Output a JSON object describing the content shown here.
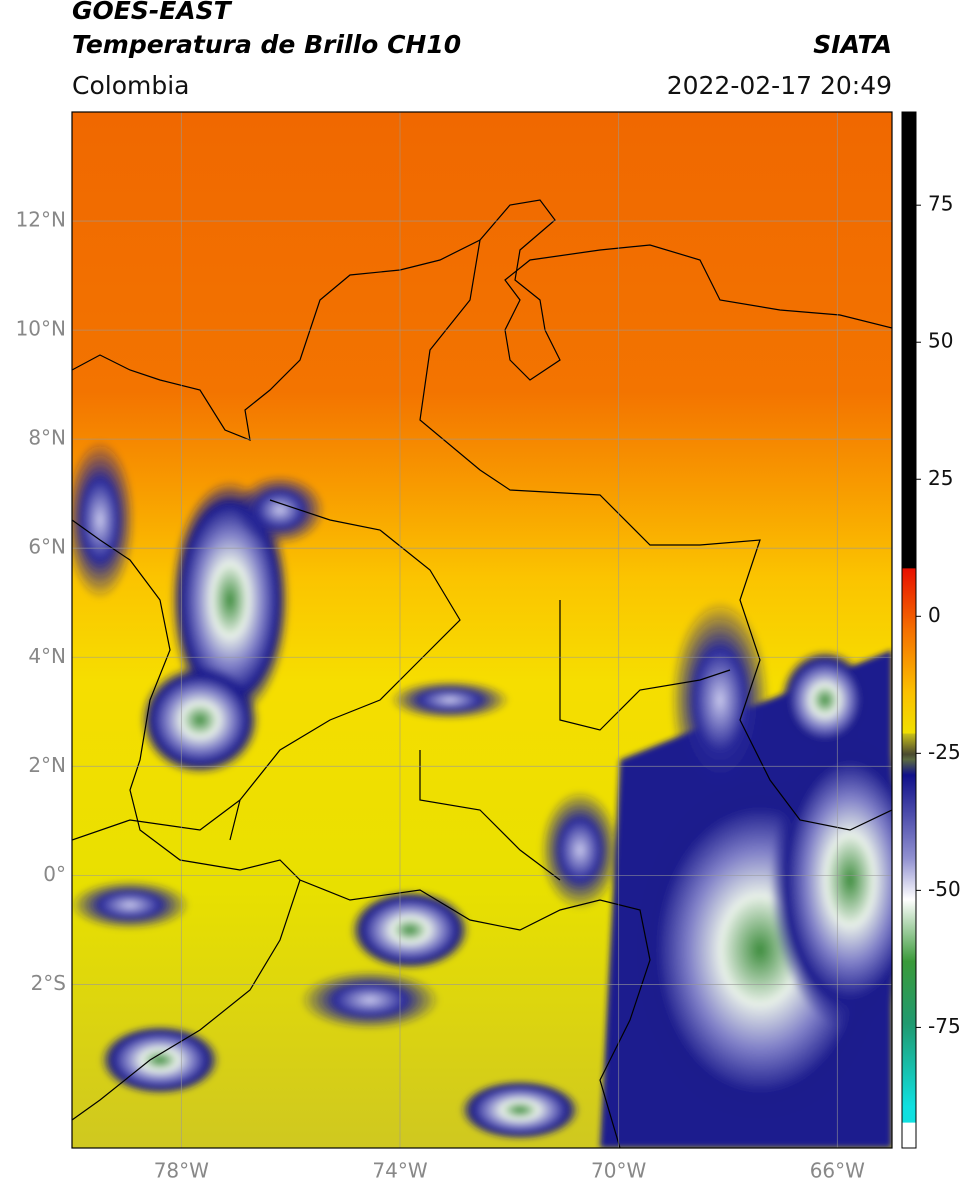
{
  "header": {
    "title": "GOES-EAST",
    "subtitle": "Temperatura de Brillo CH10",
    "source": "SIATA",
    "region": "Colombia",
    "timestamp": "2022-02-17 20:49"
  },
  "map": {
    "lonlim": [
      -80,
      -65
    ],
    "latlim": [
      -5,
      14
    ],
    "grid": true,
    "lat_ticks": [
      {
        "value": 12,
        "label": "12°N"
      },
      {
        "value": 10,
        "label": "10°N"
      },
      {
        "value": 8,
        "label": "8°N"
      },
      {
        "value": 6,
        "label": "6°N"
      },
      {
        "value": 4,
        "label": "4°N"
      },
      {
        "value": 2,
        "label": "2°N"
      },
      {
        "value": 0,
        "label": "0°"
      },
      {
        "value": -2,
        "label": "2°S"
      }
    ],
    "lon_ticks": [
      {
        "value": -78,
        "label": "78°W"
      },
      {
        "value": -74,
        "label": "74°W"
      },
      {
        "value": -70,
        "label": "70°W"
      },
      {
        "value": -66,
        "label": "66°W"
      }
    ]
  },
  "colorbar": {
    "lim": [
      -97,
      92
    ],
    "ticks": [
      75,
      50,
      25,
      0,
      -25,
      -50,
      -75
    ]
  }
}
